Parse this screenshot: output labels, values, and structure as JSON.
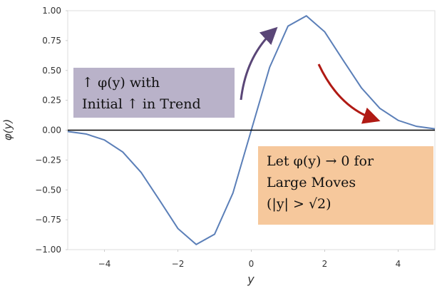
{
  "chart_data": {
    "type": "line",
    "x_label": "y",
    "y_label": "φ(y)",
    "x": [
      -5,
      -4.5,
      -4,
      -3.5,
      -3,
      -2.5,
      -2,
      -1.5,
      -1,
      -0.5,
      0,
      0.5,
      1,
      1.5,
      2,
      2.5,
      3,
      3.5,
      4,
      4.5,
      5
    ],
    "series": [
      {
        "color": "#5b7fb8",
        "values": [
          -0.011,
          -0.032,
          -0.082,
          -0.183,
          -0.354,
          -0.586,
          -0.823,
          -0.957,
          -0.871,
          -0.526,
          0,
          0.526,
          0.871,
          0.957,
          0.823,
          0.586,
          0.354,
          0.183,
          0.082,
          0.032,
          0.011
        ]
      }
    ],
    "xlim": [
      -5,
      5
    ],
    "xticks": [
      {
        "value": -4,
        "label": "−4"
      },
      {
        "value": -2,
        "label": "−2"
      },
      0,
      2,
      4
    ],
    "ylim": [
      -1,
      1
    ],
    "yticks": [
      {
        "value": -1,
        "label": "−1.00"
      },
      {
        "value": -0.75,
        "label": "−0.75"
      },
      {
        "value": -0.5,
        "label": "−0.50"
      },
      {
        "value": -0.25,
        "label": "−0.25"
      },
      {
        "value": 0,
        "label": "0.00"
      },
      {
        "value": 0.25,
        "label": "0.25"
      },
      {
        "value": 0.5,
        "label": "0.50"
      },
      {
        "value": 0.75,
        "label": "0.75"
      },
      {
        "value": 1,
        "label": "1.00"
      }
    ],
    "annotations": [
      {
        "lines": [
          "↑ φ(y) with",
          "Initial ↑ in Trend"
        ],
        "color": "#b9b2c9"
      },
      {
        "lines": [
          "Let φ(y) → 0 for",
          "Large Moves",
          "(|y| > √2)"
        ],
        "color": "#f6c89c"
      }
    ]
  }
}
